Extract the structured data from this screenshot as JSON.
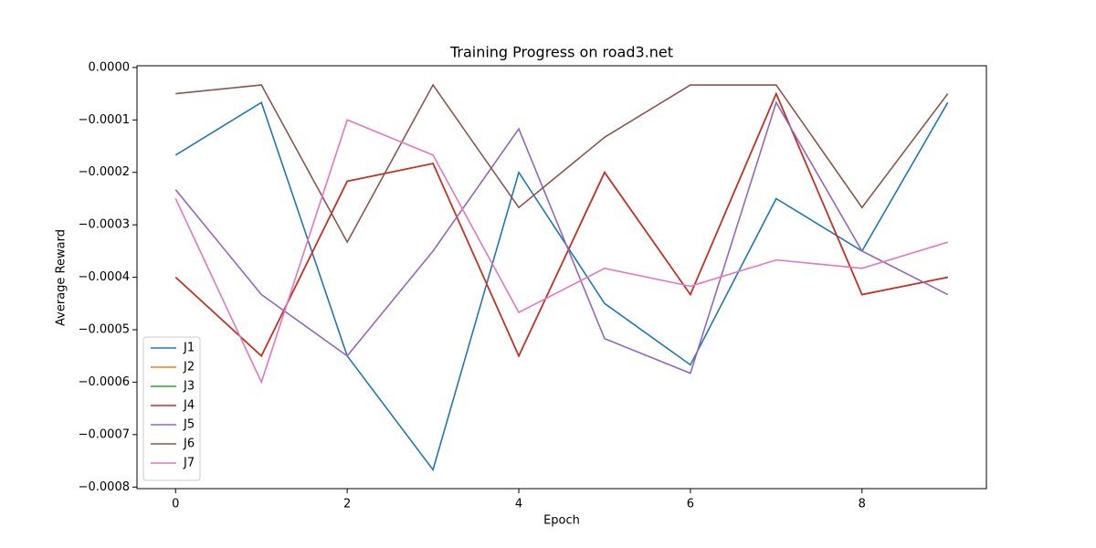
{
  "chart_data": {
    "type": "line",
    "title": "Training Progress on road3.net",
    "x_label": "Epoch",
    "y_label": "Average Reward",
    "x": [
      0,
      1,
      2,
      3,
      4,
      5,
      6,
      7,
      8,
      9
    ],
    "series": [
      {
        "name": "J1",
        "color": "#1f77b4",
        "values": [
          -0.000167,
          -6.67e-05,
          -0.00055,
          -0.000767,
          -0.0002,
          -0.00045,
          -0.000567,
          -0.00025,
          -0.00035,
          -6.67e-05
        ]
      },
      {
        "name": "J2",
        "color": "#ff7f0e",
        "values": [
          -0.0004,
          -0.00055,
          -0.000217,
          -0.000183,
          -0.00055,
          -0.0002,
          -0.000433,
          -5e-05,
          -0.000433,
          -0.0004
        ]
      },
      {
        "name": "J3",
        "color": "#2ca02c",
        "values": [
          -0.0004,
          -0.00055,
          -0.000217,
          -0.000183,
          -0.00055,
          -0.0002,
          -0.000433,
          -5e-05,
          -0.000433,
          -0.0004
        ]
      },
      {
        "name": "J4",
        "color": "#d62728",
        "values": [
          -0.0004,
          -0.00055,
          -0.000217,
          -0.000183,
          -0.00055,
          -0.0002,
          -0.000433,
          -5e-05,
          -0.000433,
          -0.0004
        ]
      },
      {
        "name": "J5",
        "color": "#9467bd",
        "values": [
          -0.000233,
          -0.000433,
          -0.00055,
          -0.00035,
          -0.000117,
          -0.000517,
          -0.000583,
          -6.67e-05,
          -0.00035,
          -0.000433
        ]
      },
      {
        "name": "J6",
        "color": "#8c564b",
        "values": [
          -5e-05,
          -3.33e-05,
          -0.000333,
          -3.33e-05,
          -0.000267,
          -0.000133,
          -3.33e-05,
          -3.33e-05,
          -0.000267,
          -5e-05
        ]
      },
      {
        "name": "J7",
        "color": "#e377c2",
        "values": [
          -0.00025,
          -0.0006,
          -0.0001,
          -0.000167,
          -0.000467,
          -0.000383,
          -0.000417,
          -0.000367,
          -0.000383,
          -0.000333
        ]
      }
    ],
    "xlim": [
      -0.45,
      9.45
    ],
    "xticks": [
      0,
      2,
      4,
      6,
      8
    ],
    "ylim": [
      -0.000803,
      3.3e-06
    ],
    "yticks": [
      {
        "value": 0,
        "label": "0.0000"
      },
      {
        "value": -0.0001,
        "label": "−0.0001"
      },
      {
        "value": -0.0002,
        "label": "−0.0002"
      },
      {
        "value": -0.0003,
        "label": "−0.0003"
      },
      {
        "value": -0.0004,
        "label": "−0.0004"
      },
      {
        "value": -0.0005,
        "label": "−0.0005"
      },
      {
        "value": -0.0006,
        "label": "−0.0006"
      },
      {
        "value": -0.0007,
        "label": "−0.0007"
      },
      {
        "value": -0.0008,
        "label": "−0.0008"
      }
    ],
    "grid": false,
    "legend": "lower left"
  }
}
